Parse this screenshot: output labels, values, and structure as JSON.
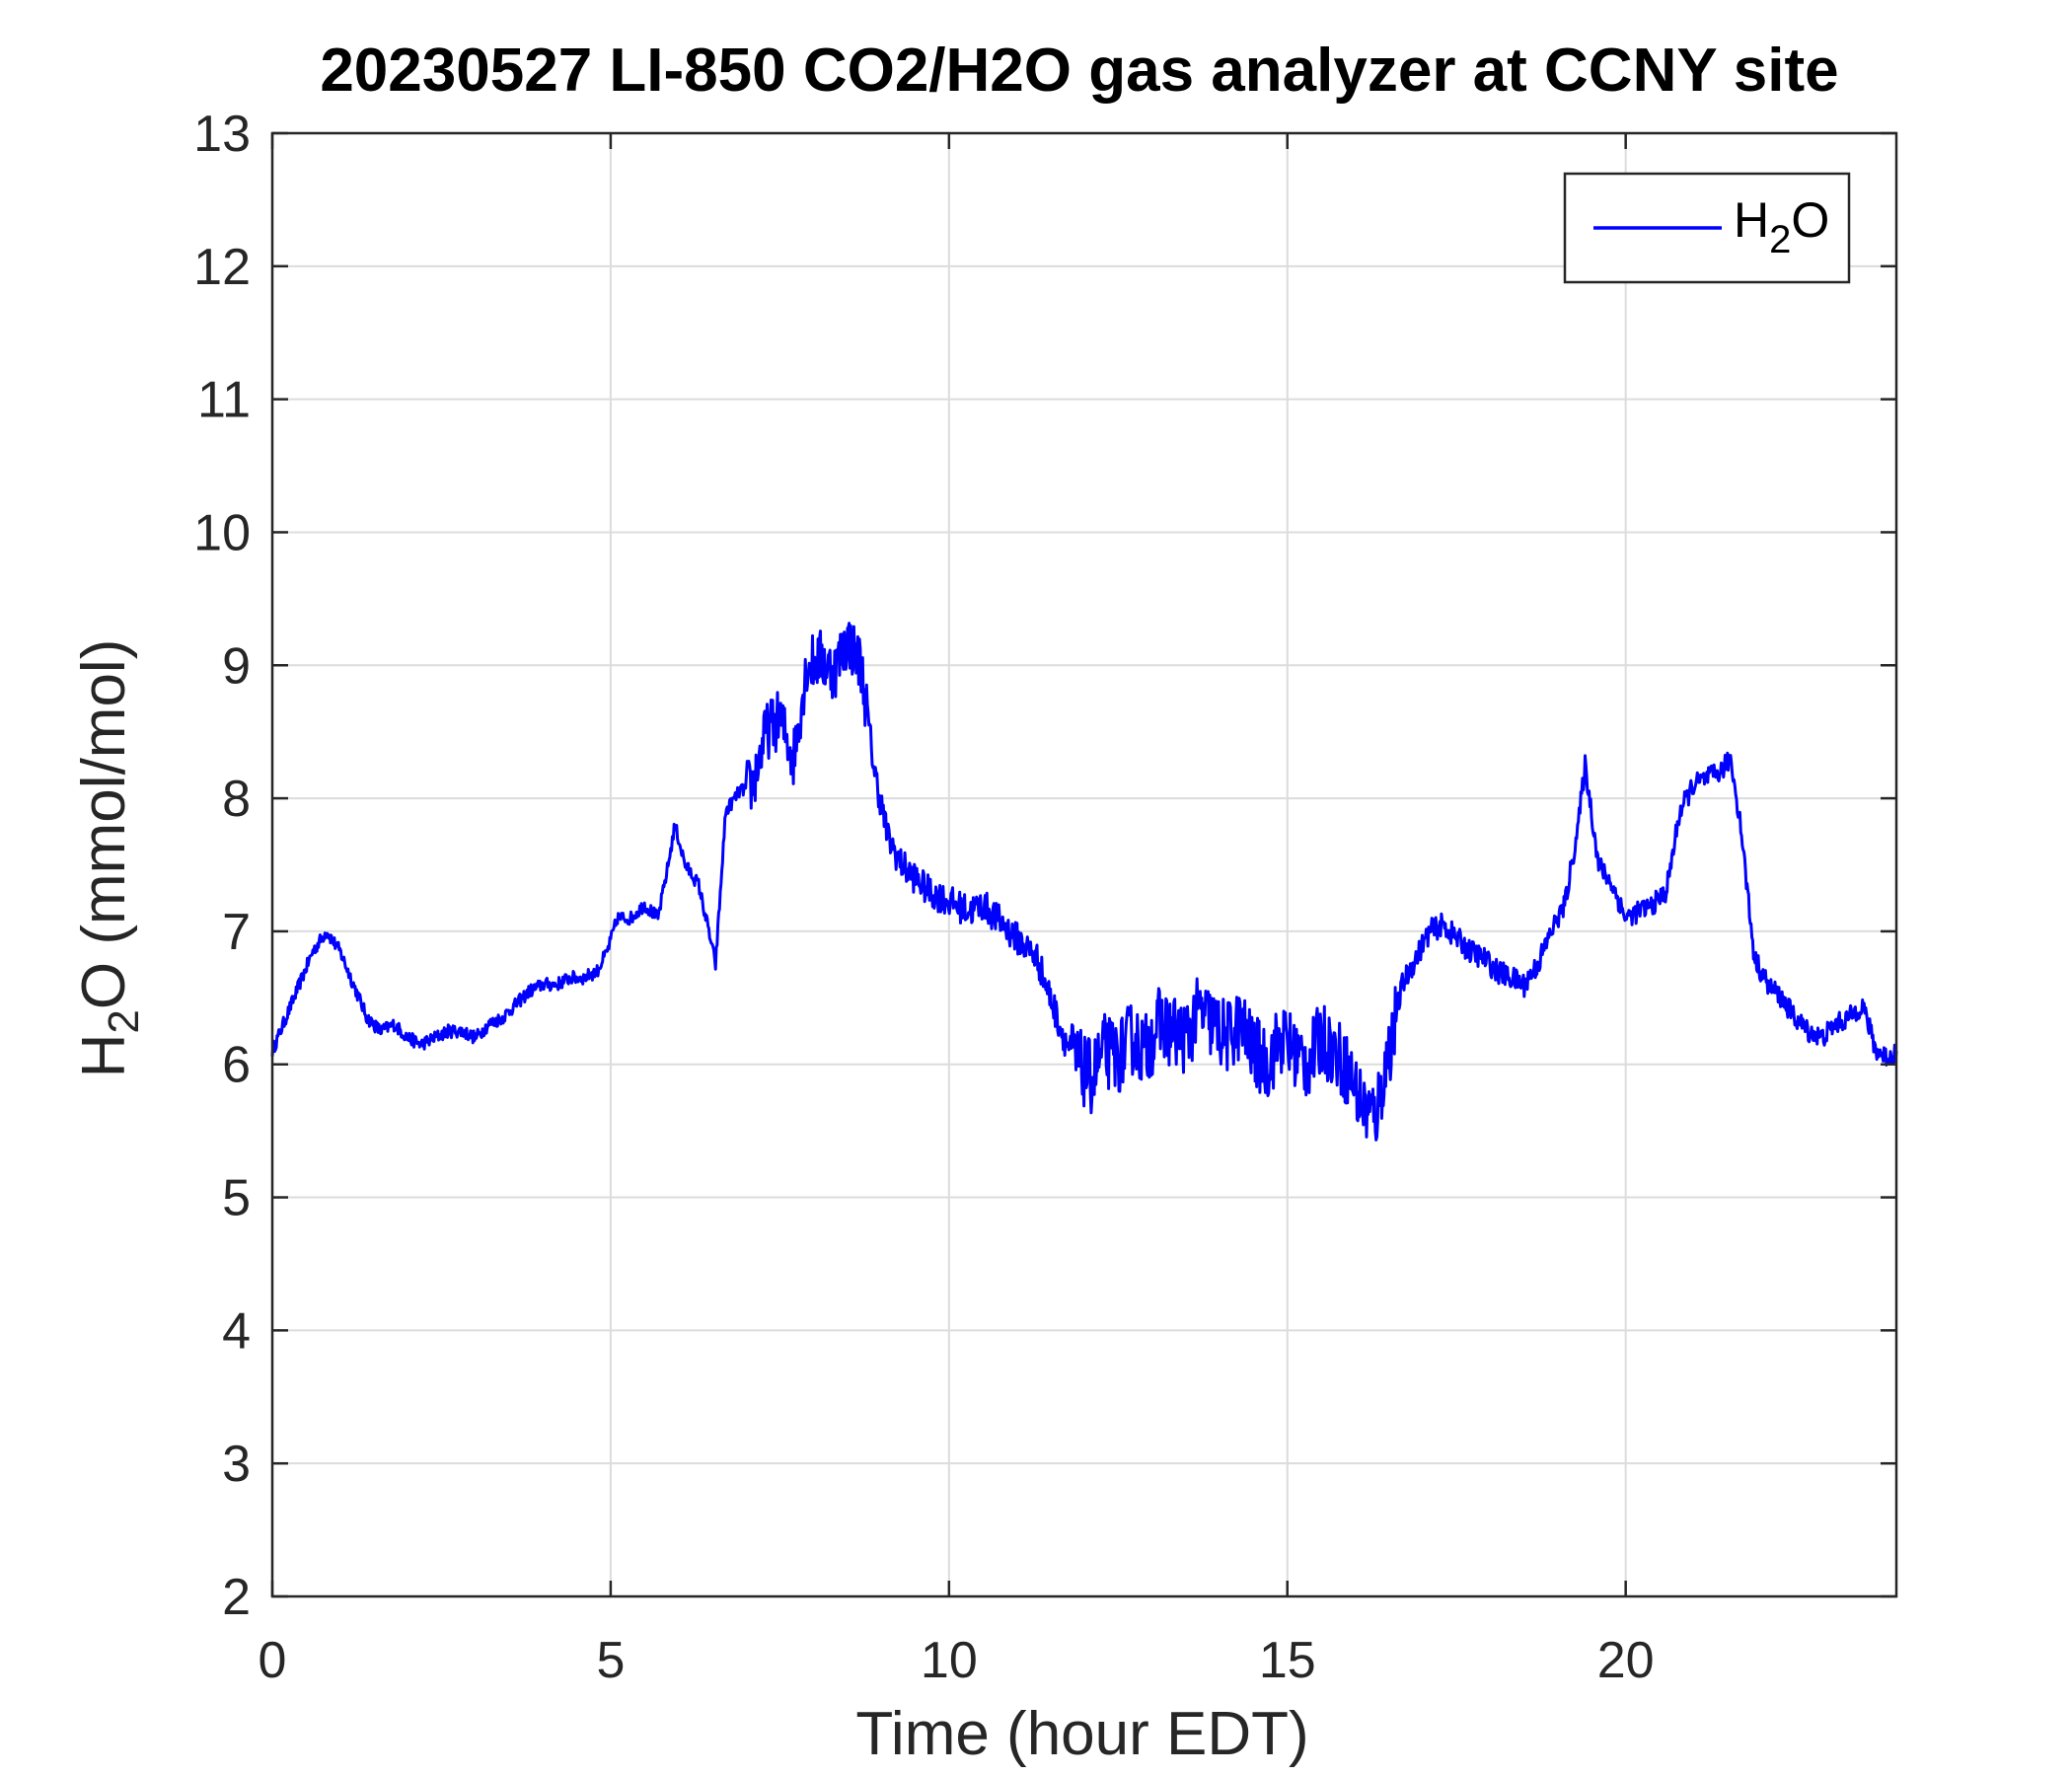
{
  "chart_data": {
    "type": "line",
    "title": "20230527 LI-850 CO2/H2O gas analyzer at CCNY site",
    "xlabel": "Time (hour EDT)",
    "ylabel": "H2O (mmol/mol)",
    "ylabel_parts": {
      "pre": "H",
      "sub": "2",
      "post": "O (mmol/mol)"
    },
    "xlim": [
      0,
      24
    ],
    "ylim": [
      2,
      13
    ],
    "xticks": [
      "0",
      "5",
      "10",
      "15",
      "20"
    ],
    "yticks": [
      "2",
      "3",
      "4",
      "5",
      "6",
      "7",
      "8",
      "9",
      "10",
      "11",
      "12",
      "13"
    ],
    "grid": true,
    "legend_position": "top-right",
    "series": [
      {
        "name": "H2O",
        "name_parts": {
          "pre": "H",
          "sub": "2",
          "post": "O"
        },
        "color": "#0000ff",
        "x": [
          0,
          0.2,
          0.4,
          0.6,
          0.8,
          1.0,
          1.2,
          1.4,
          1.6,
          1.8,
          2.0,
          2.2,
          2.4,
          2.6,
          2.8,
          3.0,
          3.2,
          3.4,
          3.6,
          3.8,
          4.0,
          4.2,
          4.4,
          4.6,
          4.8,
          4.95,
          5.1,
          5.3,
          5.5,
          5.7,
          5.85,
          5.95,
          6.1,
          6.3,
          6.45,
          6.55,
          6.7,
          6.9,
          7.1,
          7.3,
          7.5,
          7.7,
          7.9,
          8.1,
          8.3,
          8.5,
          8.7,
          8.9,
          9.1,
          9.3,
          9.5,
          9.7,
          9.9,
          10.1,
          10.3,
          10.5,
          10.7,
          10.9,
          11.1,
          11.3,
          11.5,
          11.7,
          11.9,
          12.1,
          12.3,
          12.5,
          12.7,
          12.9,
          13.1,
          13.3,
          13.5,
          13.7,
          13.9,
          14.1,
          14.3,
          14.5,
          14.7,
          14.9,
          15.1,
          15.3,
          15.5,
          15.7,
          15.9,
          16.1,
          16.3,
          16.5,
          16.7,
          16.9,
          17.1,
          17.3,
          17.5,
          17.7,
          17.9,
          18.1,
          18.3,
          18.5,
          18.7,
          18.9,
          19.1,
          19.3,
          19.4,
          19.6,
          19.8,
          20.0,
          20.2,
          20.4,
          20.6,
          20.8,
          21.0,
          21.2,
          21.4,
          21.55,
          21.7,
          21.9,
          22.1,
          22.3,
          22.5,
          22.7,
          22.9,
          23.1,
          23.3,
          23.5,
          23.7,
          23.9,
          24.0
        ],
        "y": [
          6.1,
          6.35,
          6.6,
          6.85,
          7.0,
          6.85,
          6.6,
          6.35,
          6.25,
          6.3,
          6.2,
          6.15,
          6.2,
          6.25,
          6.25,
          6.2,
          6.3,
          6.35,
          6.45,
          6.55,
          6.6,
          6.6,
          6.65,
          6.65,
          6.7,
          6.85,
          7.1,
          7.1,
          7.2,
          7.1,
          7.5,
          7.8,
          7.5,
          7.35,
          7.0,
          6.75,
          7.9,
          8.05,
          8.1,
          8.5,
          8.6,
          8.3,
          9.0,
          9.05,
          8.95,
          9.2,
          9.0,
          8.2,
          7.7,
          7.5,
          7.4,
          7.3,
          7.25,
          7.2,
          7.15,
          7.2,
          7.1,
          7.0,
          6.9,
          6.8,
          6.5,
          6.2,
          6.0,
          5.9,
          6.1,
          6.05,
          6.2,
          6.1,
          6.3,
          6.25,
          6.2,
          6.4,
          6.3,
          6.2,
          6.3,
          6.1,
          6.0,
          6.2,
          6.1,
          6.0,
          6.2,
          6.1,
          5.95,
          5.7,
          5.6,
          6.1,
          6.6,
          6.8,
          7.0,
          7.05,
          6.95,
          6.85,
          6.8,
          6.7,
          6.65,
          6.6,
          6.75,
          7.0,
          7.2,
          7.8,
          8.25,
          7.5,
          7.35,
          7.1,
          7.15,
          7.2,
          7.3,
          7.9,
          8.1,
          8.15,
          8.2,
          8.3,
          7.8,
          6.8,
          6.6,
          6.5,
          6.35,
          6.25,
          6.2,
          6.3,
          6.35,
          6.45,
          6.1,
          6.05,
          6.1
        ]
      }
    ]
  }
}
